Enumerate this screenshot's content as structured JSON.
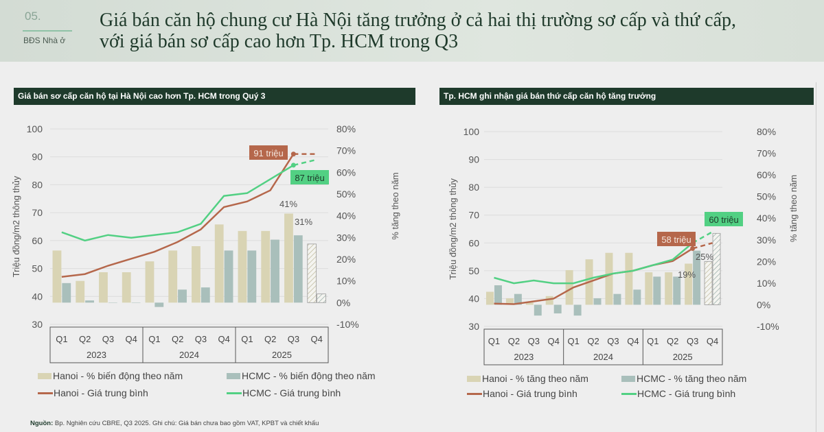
{
  "header": {
    "section_number": "05.",
    "section_name": "BĐS Nhà ở",
    "title": "Giá bán căn hộ chung cư Hà Nội tăng trưởng ở cả hai thị trường sơ cấp và thứ cấp, với giá bán sơ cấp cao hơn Tp. HCM trong Q3"
  },
  "colors": {
    "hanoi_bar": "#d9d4b4",
    "hcmc_bar": "#a9bfbb",
    "hanoi_line": "#b5674b",
    "hcmc_line": "#52d083",
    "panel_header": "#1e3a2b"
  },
  "chart_data": [
    {
      "type": "bar+line",
      "title": "Giá bán sơ cấp căn hộ tại Hà Nội cao hơn Tp. HCM trong Quý 3",
      "ylabel": "Triệu đồng/m2 thông thủy",
      "y2label": "% tăng theo năm",
      "ylim": [
        30,
        100
      ],
      "y_ticks": [
        "100",
        "90",
        "80",
        "70",
        "60",
        "50",
        "40",
        "30"
      ],
      "y2lim": [
        -10,
        80
      ],
      "y2_ticks": [
        "80%",
        "70%",
        "60%",
        "50%",
        "40%",
        "30%",
        "20%",
        "10%",
        "0%",
        "-10%"
      ],
      "categories": [
        "Q1",
        "Q2",
        "Q3",
        "Q4",
        "Q1",
        "Q2",
        "Q3",
        "Q4",
        "Q1",
        "Q2",
        "Q3",
        "Q4"
      ],
      "years": [
        "2023",
        "2024",
        "2025"
      ],
      "forecast_last": true,
      "grid": true,
      "legend_position": "bottom",
      "series": [
        {
          "name": "Hanoi - % biến động theo năm",
          "type": "bar",
          "axis": "right",
          "values": [
            24,
            10,
            14,
            14,
            19,
            24,
            26,
            36,
            33,
            33,
            41,
            27
          ]
        },
        {
          "name": "HCMC - % biến động theo năm",
          "type": "bar",
          "axis": "right",
          "values": [
            9,
            1,
            0,
            0,
            -2,
            6,
            7,
            24,
            24,
            29,
            31,
            4
          ]
        },
        {
          "name": "Hanoi - Giá trung bình",
          "type": "line",
          "axis": "left",
          "values": [
            47,
            48,
            51,
            53.5,
            56,
            59.5,
            64,
            72,
            74,
            78,
            91,
            91
          ]
        },
        {
          "name": "HCMC - Giá trung bình",
          "type": "line",
          "axis": "left",
          "values": [
            63,
            60,
            62,
            61,
            62,
            63,
            66,
            76,
            77,
            82,
            87,
            89
          ]
        }
      ],
      "annotations": {
        "hanoi_price": "91 triệu",
        "hcmc_price": "87 triệu",
        "hanoi_pct": "41%",
        "hcmc_pct": "31%"
      }
    },
    {
      "type": "bar+line",
      "title": "Tp. HCM ghi nhận giá bán thứ cấp căn hộ tăng trưởng",
      "ylabel": "Triệu đồng/m2 thông thủy",
      "y2label": "% tăng theo năm",
      "ylim": [
        30,
        100
      ],
      "y_ticks": [
        "100",
        "90",
        "80",
        "70",
        "60",
        "50",
        "40",
        "30"
      ],
      "y2lim": [
        -10,
        80
      ],
      "y2_ticks": [
        "80%",
        "70%",
        "60%",
        "50%",
        "40%",
        "30%",
        "20%",
        "10%",
        "0%",
        "-10%"
      ],
      "categories": [
        "Q1",
        "Q2",
        "Q3",
        "Q4",
        "Q1",
        "Q2",
        "Q3",
        "Q4",
        "Q1",
        "Q2",
        "Q3",
        "Q4"
      ],
      "years": [
        "2023",
        "2024",
        "2025"
      ],
      "forecast_last": true,
      "grid": true,
      "legend_position": "bottom",
      "series": [
        {
          "name": "Hanoi - % tăng theo năm",
          "type": "bar",
          "axis": "right",
          "values": [
            6,
            3,
            1,
            4,
            16,
            21,
            24,
            24,
            15,
            15,
            19,
            20
          ]
        },
        {
          "name": "HCMC - % tăng theo năm",
          "type": "bar",
          "axis": "right",
          "values": [
            9,
            5,
            -5,
            -4,
            -5,
            3,
            5,
            7,
            13,
            13,
            25,
            33
          ]
        },
        {
          "name": "Hanoi - Giá trung bình",
          "type": "line",
          "axis": "left",
          "values": [
            38.2,
            38,
            39,
            40,
            44,
            46.5,
            49,
            50,
            52,
            53.5,
            58,
            60
          ]
        },
        {
          "name": "HCMC - Giá trung bình",
          "type": "line",
          "axis": "left",
          "values": [
            47.5,
            45.5,
            46.5,
            45.5,
            45.5,
            47.5,
            49,
            50,
            52,
            54,
            60,
            64
          ]
        }
      ],
      "annotations": {
        "hanoi_price": "58 triệu",
        "hcmc_price": "60 triệu",
        "hanoi_pct": "19%",
        "hcmc_pct": "25%"
      }
    }
  ],
  "source": {
    "label": "Nguồn:",
    "text": " Bp. Nghiên cứu CBRE, Q3 2025. Ghi chú: Giá bán chưa bao gồm VAT, KPBT và chiết khấu"
  }
}
